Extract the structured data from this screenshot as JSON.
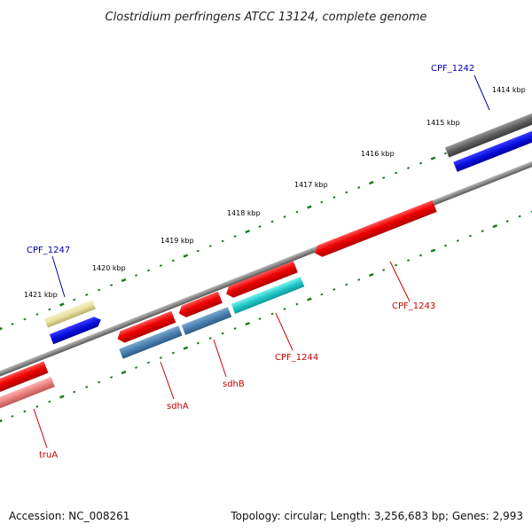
{
  "title": "Clostridium perfringens ATCC 13124, complete genome",
  "footer": {
    "accession": "Accession: NC_008261",
    "topology": "Topology: circular; Length: 3,256,683 bp; Genes: 2,993"
  },
  "ticks": [
    {
      "label": "1414 kbp"
    },
    {
      "label": "1415 kbp"
    },
    {
      "label": "1416 kbp"
    },
    {
      "label": "1417 kbp"
    },
    {
      "label": "1418 kbp"
    },
    {
      "label": "1419 kbp"
    },
    {
      "label": "1420 kbp"
    },
    {
      "label": "1421 kbp"
    }
  ],
  "genes": [
    {
      "name": "CPF_1242",
      "color": "#0000aa"
    },
    {
      "name": "CPF_1247",
      "color": "#0000aa"
    },
    {
      "name": "CPF_1243",
      "color": "#cc0000"
    },
    {
      "name": "CPF_1244",
      "color": "#cc0000"
    },
    {
      "name": "sdhB",
      "color": "#cc0000"
    },
    {
      "name": "sdhA",
      "color": "#cc0000"
    },
    {
      "name": "truA",
      "color": "#cc0000"
    }
  ],
  "colors": {
    "backbone": "#8a8a8a",
    "tick_marks": "#1a7a1a",
    "red_gene": "#ee1111",
    "blue_gene": "#0a10e0",
    "steel_gene": "#4a80b0",
    "cyan_gene": "#22c8c8",
    "yellow_gene": "#e8e0a0",
    "pink_gene": "#e88080",
    "gray_gene": "#606060"
  }
}
